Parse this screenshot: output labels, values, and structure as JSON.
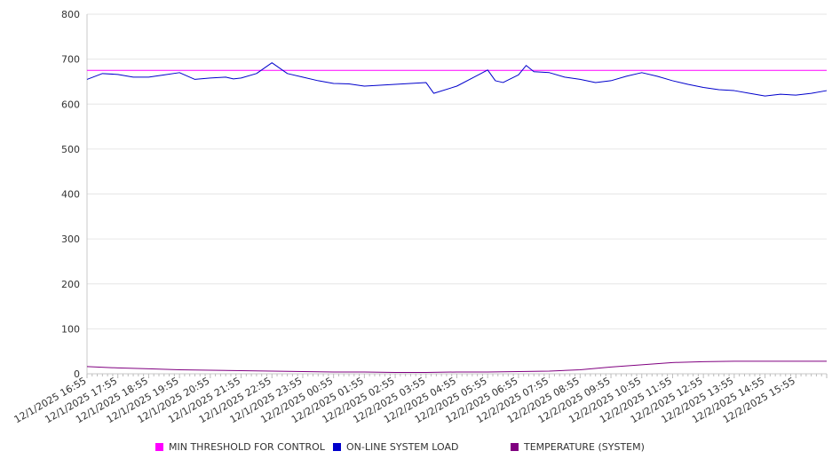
{
  "chart_data": {
    "type": "line",
    "title": "",
    "xlabel": "",
    "ylabel": "",
    "ylim": [
      0,
      800
    ],
    "yticks": [
      "0",
      "100",
      "200",
      "300",
      "400",
      "500",
      "600",
      "700",
      "800"
    ],
    "xticks": [
      "12/1/2025 16:55",
      "12/1/2025 17:55",
      "12/1/2025 18:55",
      "12/1/2025 19:55",
      "12/1/2025 20:55",
      "12/1/2025 21:55",
      "12/1/2025 22:55",
      "12/1/2025 23:55",
      "12/2/2025 00:55",
      "12/2/2025 01:55",
      "12/2/2025 02:55",
      "12/2/2025 03:55",
      "12/2/2025 04:55",
      "12/2/2025 05:55",
      "12/2/2025 06:55",
      "12/2/2025 07:55",
      "12/2/2025 08:55",
      "12/2/2025 09:55",
      "12/2/2025 10:55",
      "12/2/2025 11:55",
      "12/2/2025 12:55",
      "12/2/2025 13:55",
      "12/2/2025 14:55",
      "12/2/2025 15:55"
    ],
    "grid": true,
    "legend_position": "bottom",
    "series": [
      {
        "name": "MIN THRESHOLD FOR CONTROL",
        "color": "#ff00ff",
        "x": [
          "12/1/2025 16:55",
          "12/2/2025 16:55"
        ],
        "values": [
          675,
          675
        ]
      },
      {
        "name": "ON-LINE SYSTEM LOAD",
        "color": "#0000cc",
        "x": [
          "12/1/2025 16:55",
          "12/1/2025 17:25",
          "12/1/2025 17:55",
          "12/1/2025 18:25",
          "12/1/2025 18:55",
          "12/1/2025 19:25",
          "12/1/2025 19:55",
          "12/1/2025 20:25",
          "12/1/2025 20:55",
          "12/1/2025 21:25",
          "12/1/2025 21:40",
          "12/1/2025 21:55",
          "12/1/2025 22:25",
          "12/1/2025 22:55",
          "12/1/2025 23:25",
          "12/1/2025 23:55",
          "12/2/2025 00:25",
          "12/2/2025 00:55",
          "12/2/2025 01:25",
          "12/2/2025 01:55",
          "12/2/2025 02:25",
          "12/2/2025 02:55",
          "12/2/2025 03:25",
          "12/2/2025 03:55",
          "12/2/2025 04:10",
          "12/2/2025 04:55",
          "12/2/2025 05:25",
          "12/2/2025 05:55",
          "12/2/2025 06:10",
          "12/2/2025 06:25",
          "12/2/2025 06:55",
          "12/2/2025 07:10",
          "12/2/2025 07:25",
          "12/2/2025 07:55",
          "12/2/2025 08:25",
          "12/2/2025 08:55",
          "12/2/2025 09:25",
          "12/2/2025 09:55",
          "12/2/2025 10:25",
          "12/2/2025 10:55",
          "12/2/2025 11:25",
          "12/2/2025 11:55",
          "12/2/2025 12:25",
          "12/2/2025 12:55",
          "12/2/2025 13:25",
          "12/2/2025 13:55",
          "12/2/2025 14:25",
          "12/2/2025 14:55",
          "12/2/2025 15:25",
          "12/2/2025 15:55",
          "12/2/2025 16:25",
          "12/2/2025 16:55"
        ],
        "values": [
          655,
          668,
          666,
          660,
          660,
          665,
          670,
          655,
          658,
          660,
          656,
          658,
          668,
          692,
          668,
          660,
          652,
          646,
          645,
          640,
          642,
          644,
          646,
          648,
          624,
          640,
          658,
          676,
          652,
          648,
          665,
          686,
          672,
          670,
          660,
          655,
          648,
          652,
          662,
          670,
          662,
          652,
          644,
          637,
          632,
          630,
          624,
          618,
          622,
          620,
          624,
          630
        ]
      },
      {
        "name": "TEMPERATURE (SYSTEM)",
        "color": "#800080",
        "x": [
          "12/1/2025 16:55",
          "12/1/2025 17:55",
          "12/1/2025 18:55",
          "12/1/2025 19:55",
          "12/1/2025 20:55",
          "12/1/2025 21:55",
          "12/1/2025 22:55",
          "12/1/2025 23:55",
          "12/2/2025 00:55",
          "12/2/2025 01:55",
          "12/2/2025 02:55",
          "12/2/2025 03:55",
          "12/2/2025 04:55",
          "12/2/2025 05:55",
          "12/2/2025 06:55",
          "12/2/2025 07:55",
          "12/2/2025 08:55",
          "12/2/2025 09:55",
          "12/2/2025 10:55",
          "12/2/2025 11:55",
          "12/2/2025 12:55",
          "12/2/2025 13:55",
          "12/2/2025 14:55",
          "12/2/2025 15:55",
          "12/2/2025 16:55"
        ],
        "values": [
          16,
          13,
          11,
          9,
          8,
          7,
          6,
          5,
          4,
          4,
          3,
          3,
          4,
          4,
          5,
          6,
          9,
          15,
          20,
          25,
          27,
          28,
          28,
          28,
          28
        ]
      }
    ]
  }
}
